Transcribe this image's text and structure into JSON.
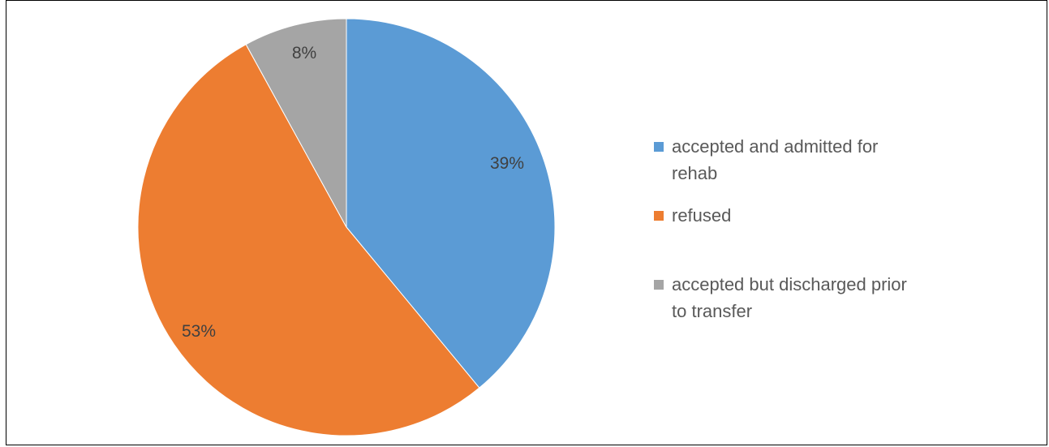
{
  "chart_data": {
    "type": "pie",
    "title": "",
    "categories": [
      "accepted and admitted for rehab",
      "refused",
      "accepted but discharged prior to transfer"
    ],
    "values": [
      39,
      53,
      8
    ],
    "value_labels": [
      "39%",
      "53%",
      "8%"
    ],
    "colors": [
      "#5B9BD5",
      "#ED7D31",
      "#A5A5A5"
    ],
    "start_angle": "12 o'clock",
    "direction": "clockwise",
    "legend_position": "right"
  }
}
